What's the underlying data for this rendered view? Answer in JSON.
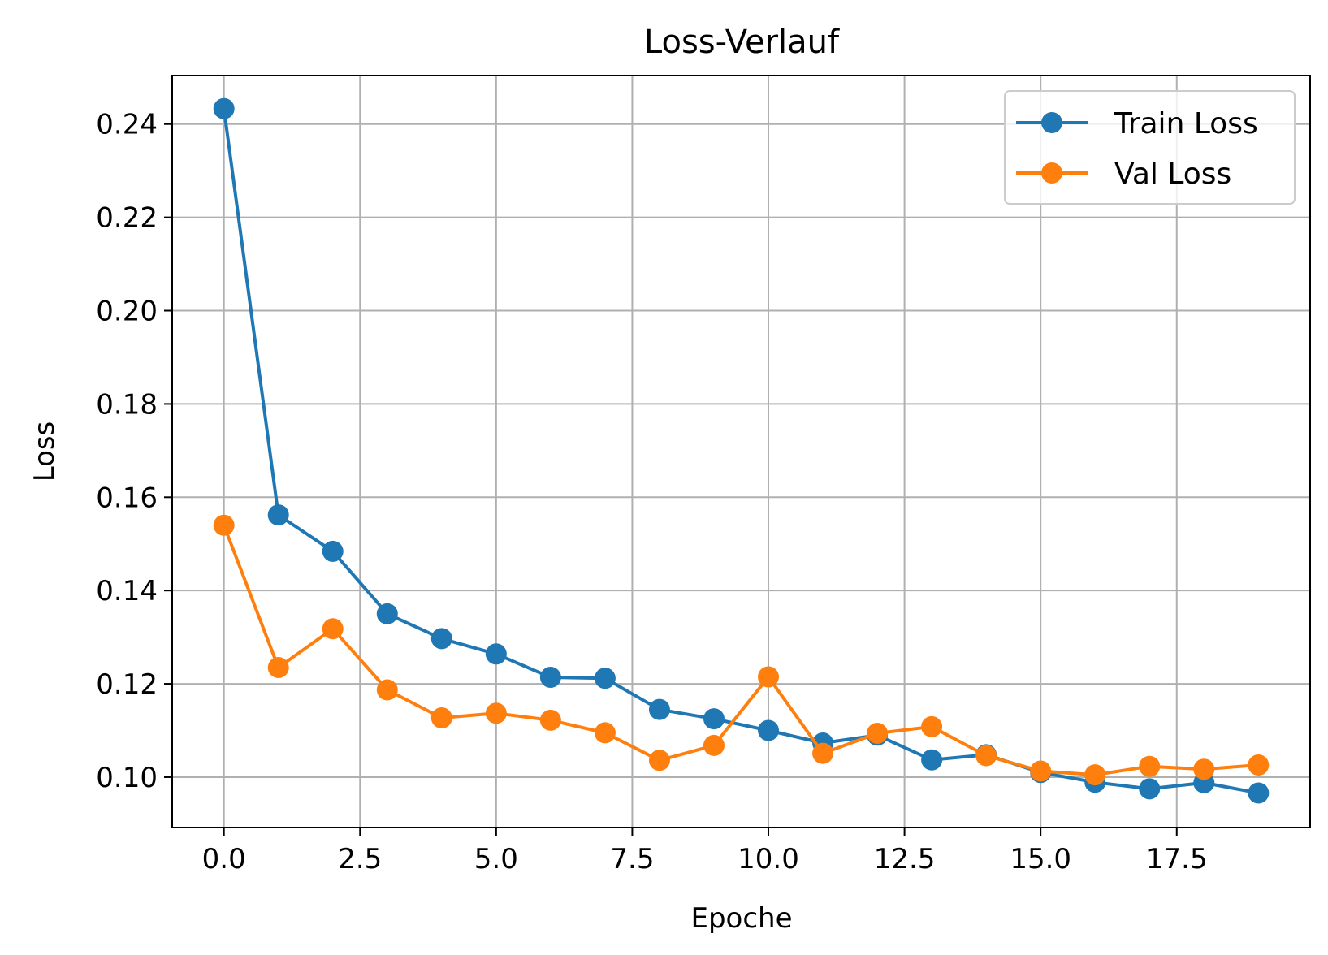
{
  "chart_data": {
    "type": "line",
    "title": "Loss-Verlauf",
    "xlabel": "Epoche",
    "ylabel": "Loss",
    "xlim": [
      -0.95,
      19.95
    ],
    "ylim": [
      0.0892,
      0.2504
    ],
    "xticks": [
      0.0,
      2.5,
      5.0,
      7.5,
      10.0,
      12.5,
      15.0,
      17.5
    ],
    "xtick_labels": [
      "0.0",
      "2.5",
      "5.0",
      "7.5",
      "10.0",
      "12.5",
      "15.0",
      "17.5"
    ],
    "yticks": [
      0.1,
      0.12,
      0.14,
      0.16,
      0.18,
      0.2,
      0.22,
      0.24
    ],
    "ytick_labels": [
      "0.10",
      "0.12",
      "0.14",
      "0.16",
      "0.18",
      "0.20",
      "0.22",
      "0.24"
    ],
    "grid": true,
    "legend_position": "top-right",
    "x": [
      0,
      1,
      2,
      3,
      4,
      5,
      6,
      7,
      8,
      9,
      10,
      11,
      12,
      13,
      14,
      15,
      16,
      17,
      18,
      19
    ],
    "series": [
      {
        "name": "Train Loss",
        "color": "#1f77b4",
        "values": [
          0.2433,
          0.1562,
          0.1484,
          0.135,
          0.1297,
          0.1264,
          0.1214,
          0.1212,
          0.1145,
          0.1125,
          0.11,
          0.1073,
          0.109,
          0.1037,
          0.1048,
          0.101,
          0.0989,
          0.0975,
          0.0988,
          0.0966
        ]
      },
      {
        "name": "Val Loss",
        "color": "#ff7f0e",
        "values": [
          0.154,
          0.1235,
          0.1318,
          0.1187,
          0.1127,
          0.1137,
          0.1122,
          0.1095,
          0.1036,
          0.1068,
          0.1215,
          0.1051,
          0.1094,
          0.1108,
          0.1046,
          0.1013,
          0.1005,
          0.1023,
          0.1017,
          0.1026
        ]
      }
    ]
  }
}
